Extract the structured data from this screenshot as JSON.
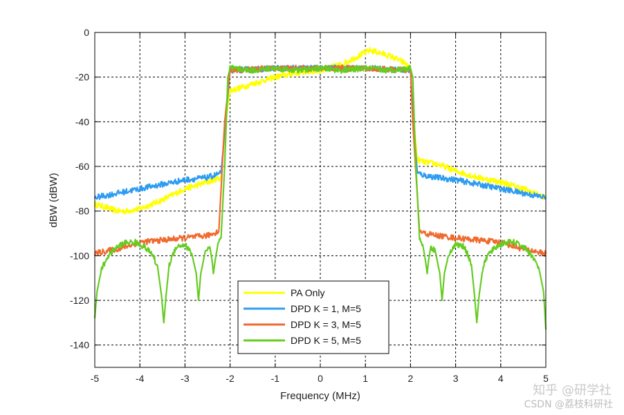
{
  "chart_data": {
    "type": "line",
    "title": "",
    "xlabel": "Frequency (MHz)",
    "ylabel": "dBW (dBW)",
    "xlim": [
      -5,
      5
    ],
    "ylim": [
      -150,
      0
    ],
    "xticks": [
      "-5",
      "-4",
      "-3",
      "-2",
      "-1",
      "0",
      "1",
      "2",
      "3",
      "4",
      "5"
    ],
    "yticks": [
      "0",
      "-20",
      "-40",
      "-60",
      "-80",
      "-100",
      "-120",
      "-140"
    ],
    "grid": true,
    "legend_position": "bottom-center",
    "series": [
      {
        "name": "PA Only",
        "color": "#ffff00",
        "x": [
          -5,
          -4.8,
          -4.5,
          -4.3,
          -4,
          -3.5,
          -3,
          -2.5,
          -2.2,
          -2.1,
          -2,
          -1.8,
          -1.5,
          -1,
          -0.5,
          0,
          0.5,
          0.8,
          1.1,
          1.3,
          1.6,
          1.9,
          2,
          2.05,
          2.15,
          2.3,
          2.6,
          3,
          3.5,
          4,
          4.5,
          5
        ],
        "y": [
          -77,
          -78,
          -80,
          -80,
          -79,
          -75,
          -70,
          -67,
          -65,
          -40,
          -26,
          -25,
          -23,
          -20,
          -18,
          -17,
          -14,
          -11,
          -8,
          -9,
          -11,
          -14,
          -17,
          -35,
          -57,
          -58,
          -59,
          -62,
          -65,
          -67,
          -70,
          -74
        ]
      },
      {
        "name": "DPD K = 1, M=5",
        "color": "#2e9cf0",
        "x": [
          -5,
          -4.5,
          -4,
          -3.5,
          -3,
          -2.5,
          -2.2,
          -2.1,
          -2,
          -1,
          0,
          1,
          2,
          2.05,
          2.15,
          2.3,
          2.6,
          3,
          3.5,
          4,
          4.5,
          5
        ],
        "y": [
          -74,
          -72,
          -70,
          -68,
          -66,
          -65,
          -63,
          -40,
          -17,
          -16,
          -16,
          -16,
          -17,
          -35,
          -63,
          -64,
          -65,
          -66,
          -68,
          -70,
          -72,
          -74
        ]
      },
      {
        "name": "DPD K = 3, M=5",
        "color": "#f06a2e",
        "x": [
          -5,
          -4.5,
          -4,
          -3.5,
          -3,
          -2.5,
          -2.25,
          -2.12,
          -2,
          -1,
          0,
          1,
          2,
          2.05,
          2.2,
          2.3,
          2.6,
          3,
          3.5,
          4,
          4.5,
          5
        ],
        "y": [
          -99,
          -97,
          -94,
          -93,
          -92,
          -91,
          -89,
          -40,
          -17,
          -16,
          -16,
          -16,
          -17,
          -40,
          -89,
          -90,
          -91,
          -92,
          -93,
          -94,
          -97,
          -99
        ]
      },
      {
        "name": "DPD K = 5, M=5",
        "color": "#66cc22",
        "x": [
          -5,
          -4.95,
          -4.85,
          -4.7,
          -4.5,
          -4.3,
          -4.1,
          -3.9,
          -3.7,
          -3.6,
          -3.52,
          -3.47,
          -3.42,
          -3.35,
          -3.2,
          -3.0,
          -2.85,
          -2.75,
          -2.7,
          -2.65,
          -2.55,
          -2.45,
          -2.4,
          -2.37,
          -2.33,
          -2.27,
          -2.2,
          -2.12,
          -2.05,
          -2.0,
          -1.5,
          -1.0,
          -0.5,
          0,
          0.5,
          1.0,
          1.5,
          2.0,
          2.05,
          2.12,
          2.2,
          2.27,
          2.33,
          2.37,
          2.4,
          2.45,
          2.55,
          2.65,
          2.7,
          2.75,
          2.85,
          3.0,
          3.2,
          3.35,
          3.42,
          3.47,
          3.52,
          3.6,
          3.7,
          3.9,
          4.1,
          4.3,
          4.5,
          4.7,
          4.85,
          4.95,
          5
        ],
        "y": [
          -128,
          -116,
          -106,
          -100,
          -96,
          -94,
          -94,
          -96,
          -100,
          -106,
          -118,
          -130,
          -118,
          -104,
          -96,
          -95,
          -99,
          -108,
          -120,
          -108,
          -98,
          -96,
          -102,
          -108,
          -102,
          -95,
          -92,
          -60,
          -20,
          -16,
          -17,
          -16,
          -17,
          -16,
          -17,
          -16,
          -17,
          -16,
          -20,
          -60,
          -92,
          -95,
          -102,
          -108,
          -102,
          -96,
          -98,
          -108,
          -120,
          -108,
          -99,
          -95,
          -96,
          -104,
          -118,
          -130,
          -118,
          -106,
          -100,
          -96,
          -94,
          -94,
          -96,
          -100,
          -106,
          -116,
          -133
        ]
      }
    ]
  },
  "watermark": {
    "top": "知乎 @研学社",
    "bottom": "CSDN @荔枝科研社"
  }
}
